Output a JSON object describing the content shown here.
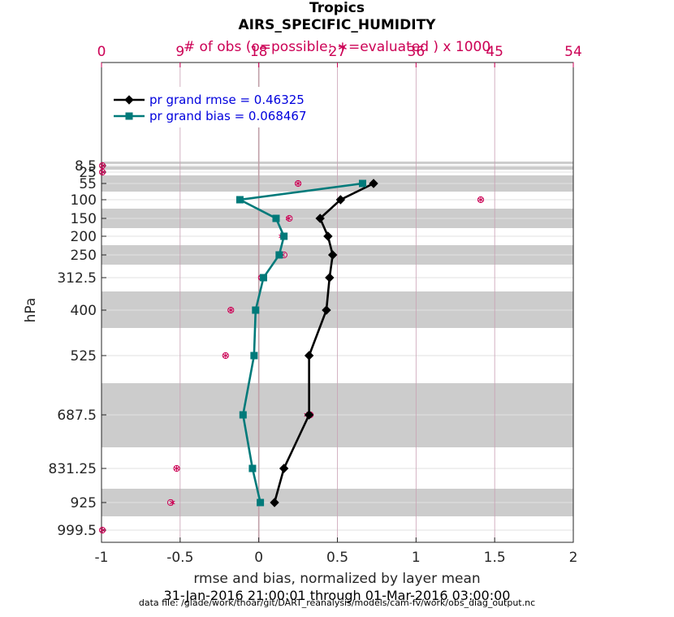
{
  "chart_data": {
    "type": "line",
    "title": "Tropics",
    "subtitle": "AIRS_SPECIFIC_HUMIDITY",
    "top_axis_label": "# of obs (o=possible; ∗=evaluated ) x 1000",
    "top_axis_ticks": [
      "0",
      "9",
      "18",
      "27",
      "36",
      "45",
      "54"
    ],
    "top_axis_range": [
      0,
      54
    ],
    "xlabel": "rmse and bias, normalized by layer mean",
    "ylabel": "hPa",
    "xlim": [
      -1,
      2
    ],
    "x_ticks": [
      "-1",
      "-0.5",
      "0",
      "0.5",
      "1",
      "1.5",
      "2"
    ],
    "y_tick_labels": [
      "8.5",
      "25",
      "55",
      "100",
      "150",
      "200",
      "250",
      "312.5",
      "400",
      "525",
      "687.5",
      "831.25",
      "925",
      "999.5"
    ],
    "levels": [
      8.5,
      25,
      55,
      100,
      150,
      200,
      250,
      312.5,
      400,
      525,
      687.5,
      831.25,
      925,
      999.5
    ],
    "date_range": "31-Jan-2016 21:00:01 through 01-Mar-2016 03:00:00",
    "data_file": "data file: /glade/work/thoar/git/DART_reanalysis/models/cam-fv/work/obs_diag_output.nc",
    "series": [
      {
        "name": "pr grand rmse = 0.46325",
        "color": "#000000",
        "marker": "diamond",
        "points": [
          {
            "level": 55,
            "value": 0.73
          },
          {
            "level": 100,
            "value": 0.52
          },
          {
            "level": 150,
            "value": 0.39
          },
          {
            "level": 200,
            "value": 0.44
          },
          {
            "level": 250,
            "value": 0.47
          },
          {
            "level": 312.5,
            "value": 0.45
          },
          {
            "level": 400,
            "value": 0.43
          },
          {
            "level": 525,
            "value": 0.32
          },
          {
            "level": 687.5,
            "value": 0.32
          },
          {
            "level": 831.25,
            "value": 0.16
          },
          {
            "level": 925,
            "value": 0.1
          }
        ]
      },
      {
        "name": "pr grand bias = 0.068467",
        "color": "#007a7a",
        "marker": "square",
        "points": [
          {
            "level": 55,
            "value": 0.66
          },
          {
            "level": 100,
            "value": -0.12
          },
          {
            "level": 150,
            "value": 0.11
          },
          {
            "level": 200,
            "value": 0.16
          },
          {
            "level": 250,
            "value": 0.13
          },
          {
            "level": 312.5,
            "value": 0.03
          },
          {
            "level": 400,
            "value": -0.02
          },
          {
            "level": 525,
            "value": -0.03
          },
          {
            "level": 687.5,
            "value": -0.1
          },
          {
            "level": 831.25,
            "value": -0.04
          },
          {
            "level": 925,
            "value": 0.01
          }
        ]
      }
    ],
    "obs_counts_thousands": [
      {
        "level": 8.5,
        "possible": 0.1,
        "evaluated": 0.1
      },
      {
        "level": 25,
        "possible": 0.1,
        "evaluated": 0.1
      },
      {
        "level": 55,
        "possible": 22.5,
        "evaluated": 22.5
      },
      {
        "level": 100,
        "possible": 43.4,
        "evaluated": 43.4
      },
      {
        "level": 150,
        "possible": 21.5,
        "evaluated": 21.4
      },
      {
        "level": 200,
        "possible": 20.8,
        "evaluated": 20.6
      },
      {
        "level": 250,
        "possible": 20.9,
        "evaluated": 20.7
      },
      {
        "level": 312.5,
        "possible": 18.3,
        "evaluated": 18.3
      },
      {
        "level": 400,
        "possible": 14.8,
        "evaluated": 14.8
      },
      {
        "level": 525,
        "possible": 14.2,
        "evaluated": 14.2
      },
      {
        "level": 687.5,
        "possible": 23.9,
        "evaluated": 23.5
      },
      {
        "level": 831.25,
        "possible": 8.6,
        "evaluated": 8.6
      },
      {
        "level": 925,
        "possible": 7.9,
        "evaluated": 8.1
      },
      {
        "level": 999.5,
        "possible": 0.1,
        "evaluated": 0.1
      }
    ],
    "colors": {
      "top_axis": "#cc0055",
      "grid_top": "#c9a0b4",
      "band": "#cccccc",
      "zero_line": "#c0a0a8",
      "legend_text": "#0000dd"
    },
    "legend_location": "top-left"
  }
}
